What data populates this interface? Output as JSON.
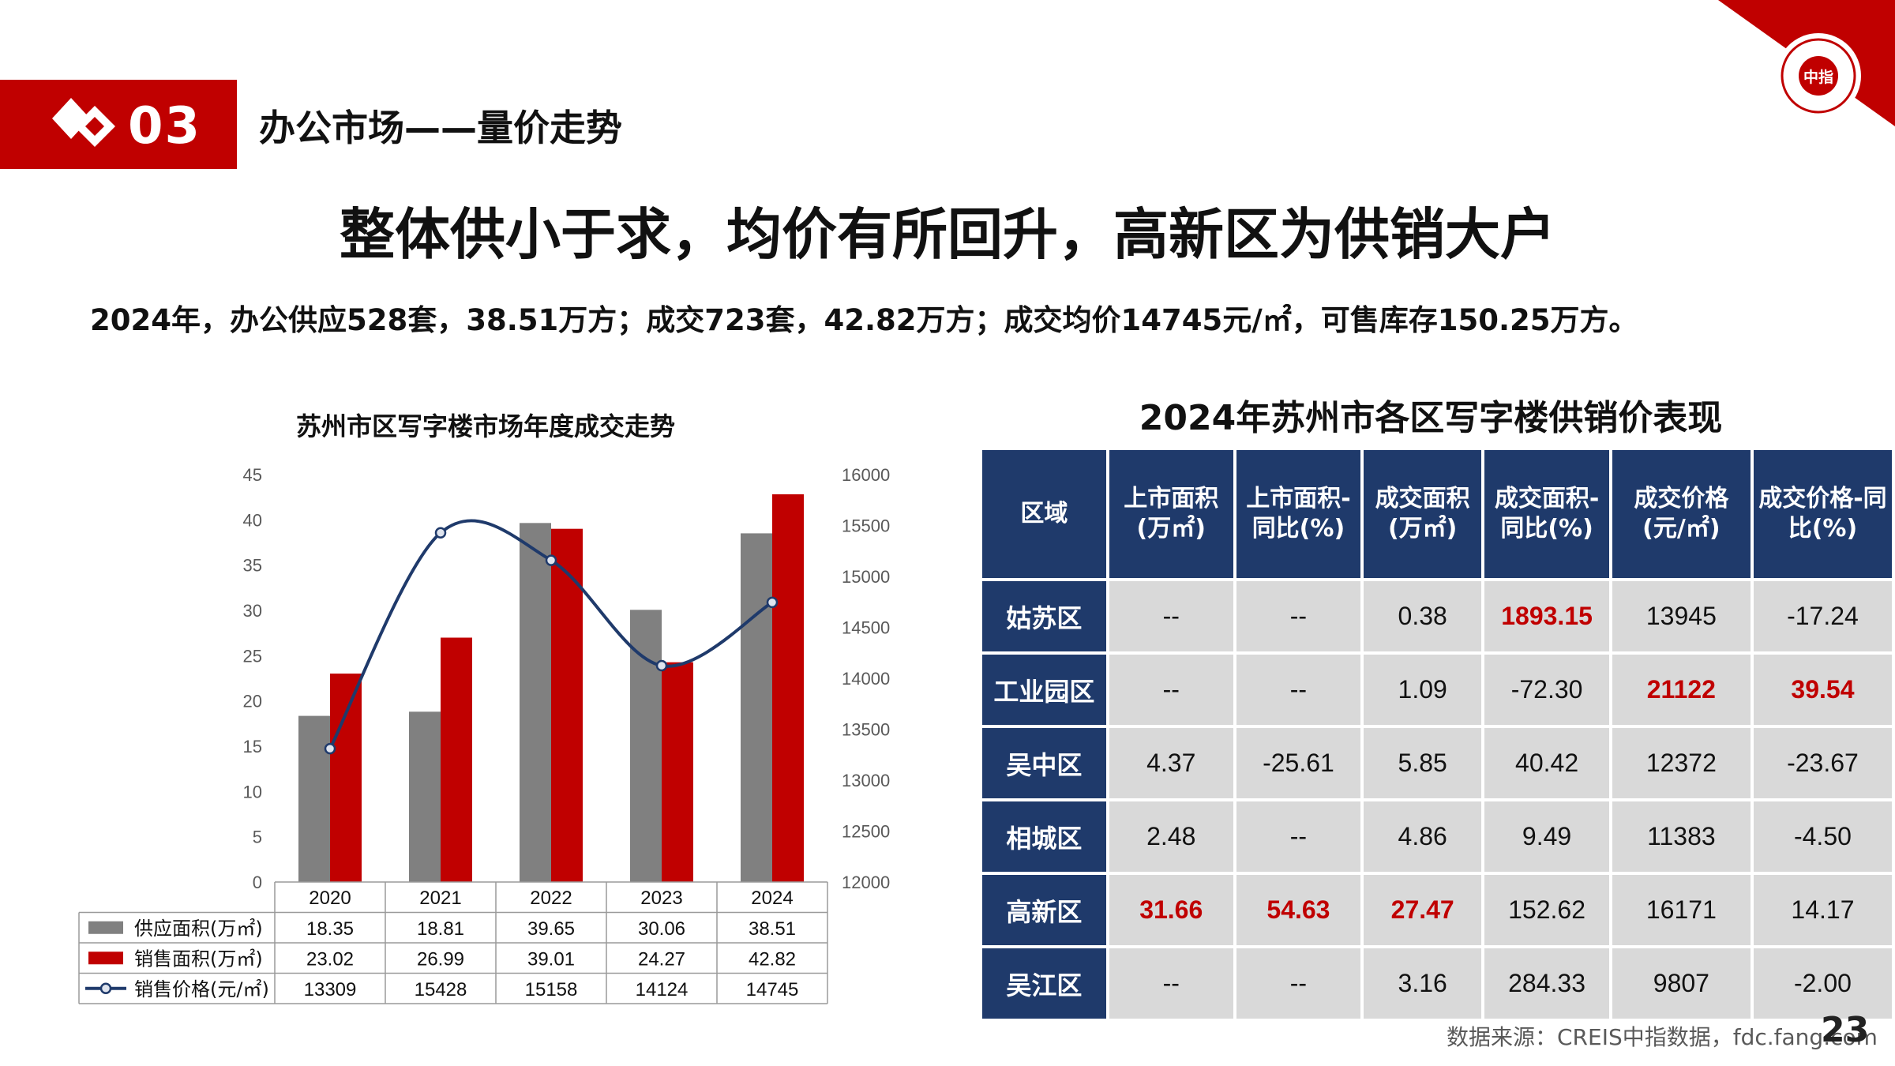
{
  "header": {
    "section_number": "03",
    "section_title": "办公市场——量价走势",
    "logo_text": "中指"
  },
  "main_heading": "整体供小于求，均价有所回升，高新区为供销大户",
  "summary": "2024年，办公供应528套，38.51万方；成交723套，42.82万方；成交均价14745元/㎡，可售库存150.25万方。",
  "colors": {
    "brand_red": "#c00000",
    "supply_gray": "#808080",
    "sales_red": "#c00000",
    "price_navy": "#1f3a6b",
    "table_header": "#1f3a6b",
    "table_cell": "#d9d9d9",
    "highlight_red": "#c00000"
  },
  "chart_data": {
    "type": "bar",
    "title": "苏州市区写字楼市场年度成交走势",
    "categories": [
      "2020",
      "2021",
      "2022",
      "2023",
      "2024"
    ],
    "series": [
      {
        "name": "供应面积(万㎡)",
        "type": "bar",
        "axis": "left",
        "values": [
          18.35,
          18.81,
          39.65,
          30.06,
          38.51
        ]
      },
      {
        "name": "销售面积(万㎡)",
        "type": "bar",
        "axis": "left",
        "values": [
          23.02,
          26.99,
          39.01,
          24.27,
          42.82
        ]
      },
      {
        "name": "销售价格(元/㎡)",
        "type": "line",
        "axis": "right",
        "values": [
          13309,
          15428,
          15158,
          14124,
          14745
        ]
      }
    ],
    "y_left": {
      "range": [
        0,
        45
      ],
      "ticks": [
        "0",
        "5",
        "10",
        "15",
        "20",
        "25",
        "30",
        "35",
        "40",
        "45"
      ]
    },
    "y_right": {
      "range": [
        12000,
        16000
      ],
      "ticks": [
        "12000",
        "12500",
        "13000",
        "13500",
        "14000",
        "14500",
        "15000",
        "15500",
        "16000"
      ]
    },
    "legend": "data-table-below",
    "grid": false
  },
  "table": {
    "title": "2024年苏州市各区写字楼供销价表现",
    "headers": [
      "区域",
      "上市面积(万㎡)",
      "上市面积-同比(%)",
      "成交面积(万㎡)",
      "成交面积-同比(%)",
      "成交价格(元/㎡)",
      "成交价格-同比(%)"
    ],
    "rows": [
      [
        "姑苏区",
        "--",
        "--",
        "0.38",
        "1893.15",
        "13945",
        "-17.24"
      ],
      [
        "工业园区",
        "--",
        "--",
        "1.09",
        "-72.30",
        "21122",
        "39.54"
      ],
      [
        "吴中区",
        "4.37",
        "-25.61",
        "5.85",
        "40.42",
        "12372",
        "-23.67"
      ],
      [
        "相城区",
        "2.48",
        "--",
        "4.86",
        "9.49",
        "11383",
        "-4.50"
      ],
      [
        "高新区",
        "31.66",
        "54.63",
        "27.47",
        "152.62",
        "16171",
        "14.17"
      ],
      [
        "吴江区",
        "--",
        "--",
        "3.16",
        "284.33",
        "9807",
        "-2.00"
      ]
    ],
    "highlights": [
      [
        0,
        4
      ],
      [
        1,
        5
      ],
      [
        1,
        6
      ],
      [
        4,
        1
      ],
      [
        4,
        2
      ],
      [
        4,
        3
      ]
    ]
  },
  "footer": {
    "source": "数据来源：CREIS中指数据，fdc.fang.com",
    "page_number": "23"
  }
}
